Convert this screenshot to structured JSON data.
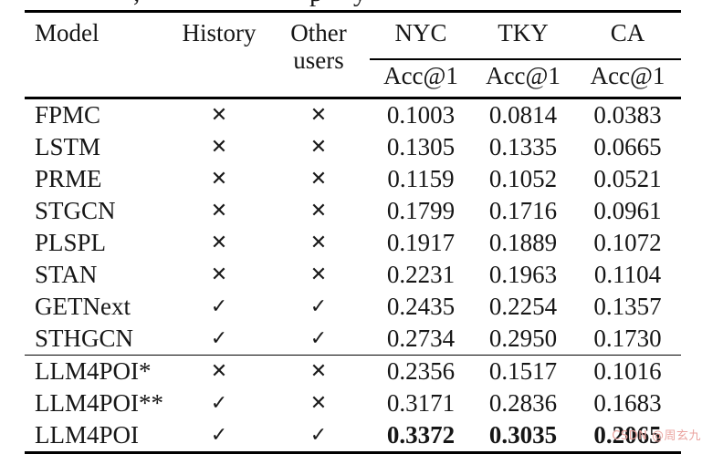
{
  "caption_fragments": [
    ",",
    "p",
    "y"
  ],
  "watermark": {
    "text": "CSDN @周玄九",
    "color": "#eba5a1"
  },
  "table": {
    "header": {
      "model": "Model",
      "history": "History",
      "other_users": "Other users"
    },
    "groups": [
      {
        "city": "NYC",
        "metric": "Acc@1"
      },
      {
        "city": "TKY",
        "metric": "Acc@1"
      },
      {
        "city": "CA",
        "metric": "Acc@1"
      }
    ],
    "rows": [
      {
        "model": "FPMC",
        "history": "✕",
        "other_users": "✕",
        "nyc": "0.1003",
        "tky": "0.0814",
        "ca": "0.0383",
        "bold": false,
        "section_start": false
      },
      {
        "model": "LSTM",
        "history": "✕",
        "other_users": "✕",
        "nyc": "0.1305",
        "tky": "0.1335",
        "ca": "0.0665",
        "bold": false,
        "section_start": false
      },
      {
        "model": "PRME",
        "history": "✕",
        "other_users": "✕",
        "nyc": "0.1159",
        "tky": "0.1052",
        "ca": "0.0521",
        "bold": false,
        "section_start": false
      },
      {
        "model": "STGCN",
        "history": "✕",
        "other_users": "✕",
        "nyc": "0.1799",
        "tky": "0.1716",
        "ca": "0.0961",
        "bold": false,
        "section_start": false
      },
      {
        "model": "PLSPL",
        "history": "✕",
        "other_users": "✕",
        "nyc": "0.1917",
        "tky": "0.1889",
        "ca": "0.1072",
        "bold": false,
        "section_start": false
      },
      {
        "model": "STAN",
        "history": "✕",
        "other_users": "✕",
        "nyc": "0.2231",
        "tky": "0.1963",
        "ca": "0.1104",
        "bold": false,
        "section_start": false
      },
      {
        "model": "GETNext",
        "history": "✓",
        "other_users": "✓",
        "nyc": "0.2435",
        "tky": "0.2254",
        "ca": "0.1357",
        "bold": false,
        "section_start": false
      },
      {
        "model": "STHGCN",
        "history": "✓",
        "other_users": "✓",
        "nyc": "0.2734",
        "tky": "0.2950",
        "ca": "0.1730",
        "bold": false,
        "section_start": false
      },
      {
        "model": "LLM4POI*",
        "history": "✕",
        "other_users": "✕",
        "nyc": "0.2356",
        "tky": "0.1517",
        "ca": "0.1016",
        "bold": false,
        "section_start": true
      },
      {
        "model": "LLM4POI**",
        "history": "✓",
        "other_users": "✕",
        "nyc": "0.3171",
        "tky": "0.2836",
        "ca": "0.1683",
        "bold": false,
        "section_start": false
      },
      {
        "model": "LLM4POI",
        "history": "✓",
        "other_users": "✓",
        "nyc": "0.3372",
        "tky": "0.3035",
        "ca": "0.2065",
        "bold": true,
        "section_start": false
      }
    ]
  }
}
